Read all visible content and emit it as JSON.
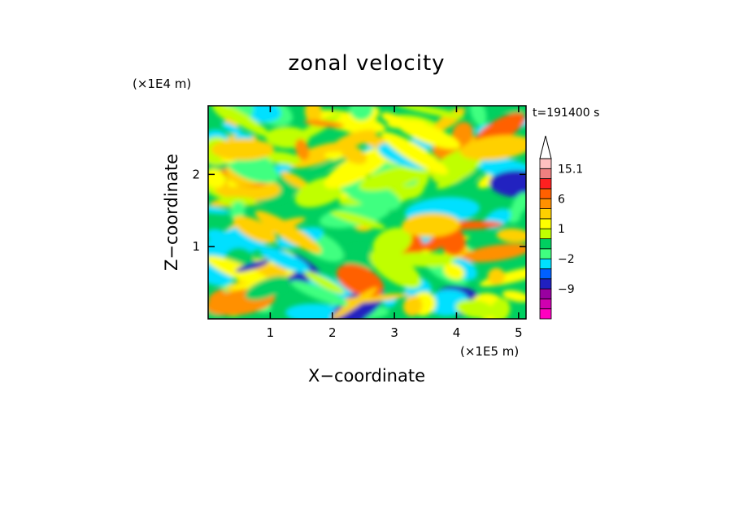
{
  "chart_data": {
    "type": "heatmap",
    "title": "zonal velocity",
    "xlabel": "X−coordinate",
    "ylabel": "Z−coordinate",
    "x_unit": "(×1E5 m)",
    "y_unit": "(×1E4 m)",
    "time_label": "t=191400 s",
    "x_range": [
      0,
      5.12
    ],
    "y_range": [
      0,
      2.95
    ],
    "x_ticks": [
      {
        "value": 1,
        "label": "1"
      },
      {
        "value": 2,
        "label": "2"
      },
      {
        "value": 3,
        "label": "3"
      },
      {
        "value": 4,
        "label": "4"
      },
      {
        "value": 5,
        "label": "5"
      }
    ],
    "y_ticks": [
      {
        "value": 1,
        "label": "1"
      },
      {
        "value": 2,
        "label": "2"
      }
    ],
    "colorbar": {
      "levels": [
        -15,
        -12,
        -9,
        -6,
        -3,
        -2,
        -1,
        0,
        1,
        2,
        3,
        6,
        9,
        12,
        15.1
      ],
      "colors": [
        "#ff00c0",
        "#d000b0",
        "#9900a0",
        "#2020c0",
        "#0060ff",
        "#00e0ff",
        "#40ff80",
        "#00d060",
        "#c0ff00",
        "#ffff00",
        "#ffd000",
        "#ff9000",
        "#ff6000",
        "#ff2020",
        "#f08080",
        "#ffc0c0"
      ],
      "labels": [
        {
          "value": 15.1,
          "label": "15.1"
        },
        {
          "value": 6,
          "label": "6"
        },
        {
          "value": 1,
          "label": "1"
        },
        {
          "value": -2,
          "label": "−2"
        },
        {
          "value": -9,
          "label": "−9"
        }
      ],
      "extend": "max"
    },
    "grid": false
  }
}
